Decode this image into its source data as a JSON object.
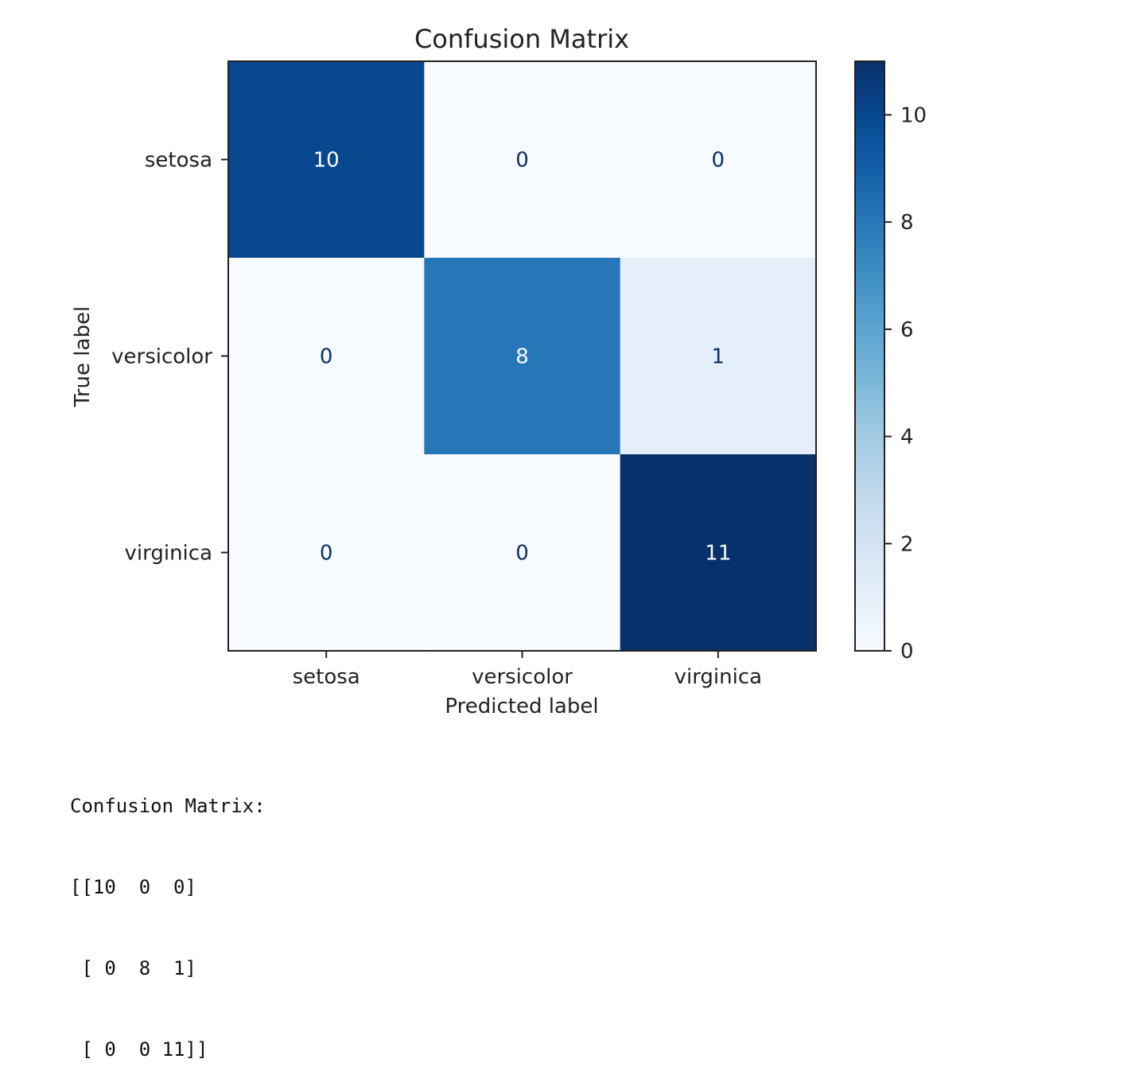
{
  "chart_data": {
    "type": "heatmap",
    "title": "Confusion Matrix",
    "xlabel": "Predicted label",
    "ylabel": "True label",
    "x_categories": [
      "setosa",
      "versicolor",
      "virginica"
    ],
    "y_categories": [
      "setosa",
      "versicolor",
      "virginica"
    ],
    "values": [
      [
        10,
        0,
        0
      ],
      [
        0,
        8,
        1
      ],
      [
        0,
        0,
        11
      ]
    ],
    "colormap": "Blues",
    "color_range": [
      0,
      11
    ],
    "colorbar_ticks": [
      0,
      2,
      4,
      6,
      8,
      10
    ],
    "colorbar_tick_labels": [
      "0",
      "2",
      "4",
      "6",
      "8",
      "10"
    ],
    "cell_labels": [
      [
        "10",
        "0",
        "0"
      ],
      [
        "0",
        "8",
        "1"
      ],
      [
        "0",
        "0",
        "11"
      ]
    ]
  },
  "output": {
    "lines": [
      "Confusion Matrix:",
      "[[10  0  0]",
      " [ 0  8  1]",
      " [ 0  0 11]]"
    ]
  },
  "colors": {
    "low": "#f7fbff",
    "high": "#08306b",
    "text_dark_cell": "#f7fbff",
    "text_light_cell": "#08306b"
  }
}
